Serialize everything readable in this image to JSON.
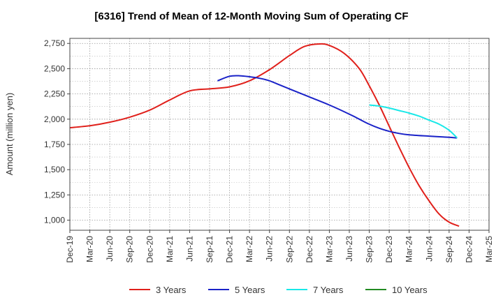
{
  "chart_data": {
    "type": "line",
    "title": "[6316]  Trend of Mean of 12-Month Moving Sum of Operating CF",
    "xlabel": "",
    "ylabel": "Amount (million yen)",
    "ylim": [
      900,
      2800
    ],
    "y_ticks": [
      1000,
      1250,
      1500,
      1750,
      2000,
      2250,
      2500,
      2750
    ],
    "y_tick_labels": [
      "1,000",
      "1,250",
      "1,500",
      "1,750",
      "2,000",
      "2,250",
      "2,500",
      "2,750"
    ],
    "x_tick_labels": [
      "Dec-19",
      "Mar-20",
      "Jun-20",
      "Sep-20",
      "Dec-20",
      "Mar-21",
      "Jun-21",
      "Sep-21",
      "Dec-21",
      "Mar-22",
      "Jun-22",
      "Sep-22",
      "Dec-22",
      "Mar-23",
      "Jun-23",
      "Sep-23",
      "Dec-23",
      "Mar-24",
      "Jun-24",
      "Sep-24",
      "Dec-24",
      "Mar-25"
    ],
    "grid": true,
    "series": [
      {
        "name": "3 Years",
        "color": "#e0201b",
        "points": [
          [
            0,
            1915
          ],
          [
            1,
            1935
          ],
          [
            2,
            1970
          ],
          [
            3,
            2020
          ],
          [
            4,
            2090
          ],
          [
            5,
            2190
          ],
          [
            6,
            2280
          ],
          [
            7,
            2300
          ],
          [
            8,
            2320
          ],
          [
            9,
            2380
          ],
          [
            10,
            2490
          ],
          [
            11,
            2630
          ],
          [
            11.75,
            2720
          ],
          [
            12.5,
            2745
          ],
          [
            13,
            2730
          ],
          [
            13.75,
            2650
          ],
          [
            14.5,
            2500
          ],
          [
            15,
            2330
          ],
          [
            15.5,
            2140
          ],
          [
            16,
            1930
          ],
          [
            16.5,
            1720
          ],
          [
            17,
            1520
          ],
          [
            17.5,
            1340
          ],
          [
            18,
            1190
          ],
          [
            18.5,
            1060
          ],
          [
            19,
            980
          ],
          [
            19.5,
            940
          ]
        ]
      },
      {
        "name": "5 Years",
        "color": "#1a22c8",
        "points": [
          [
            7.4,
            2380
          ],
          [
            8,
            2425
          ],
          [
            8.5,
            2430
          ],
          [
            9,
            2420
          ],
          [
            9.5,
            2405
          ],
          [
            10,
            2380
          ],
          [
            10.5,
            2340
          ],
          [
            11,
            2300
          ],
          [
            12,
            2220
          ],
          [
            13,
            2140
          ],
          [
            14,
            2050
          ],
          [
            14.5,
            2000
          ],
          [
            15,
            1950
          ],
          [
            15.5,
            1910
          ],
          [
            16,
            1880
          ],
          [
            16.5,
            1858
          ],
          [
            17,
            1845
          ],
          [
            18,
            1832
          ],
          [
            19,
            1820
          ],
          [
            19.4,
            1815
          ]
        ]
      },
      {
        "name": "7 Years",
        "color": "#19e8e8",
        "points": [
          [
            15,
            2140
          ],
          [
            15.5,
            2130
          ],
          [
            16,
            2110
          ],
          [
            16.5,
            2085
          ],
          [
            17,
            2060
          ],
          [
            17.5,
            2030
          ],
          [
            18,
            1990
          ],
          [
            18.5,
            1950
          ],
          [
            19,
            1890
          ],
          [
            19.4,
            1815
          ]
        ]
      },
      {
        "name": "10 Years",
        "color": "#228b22",
        "points": []
      }
    ]
  }
}
